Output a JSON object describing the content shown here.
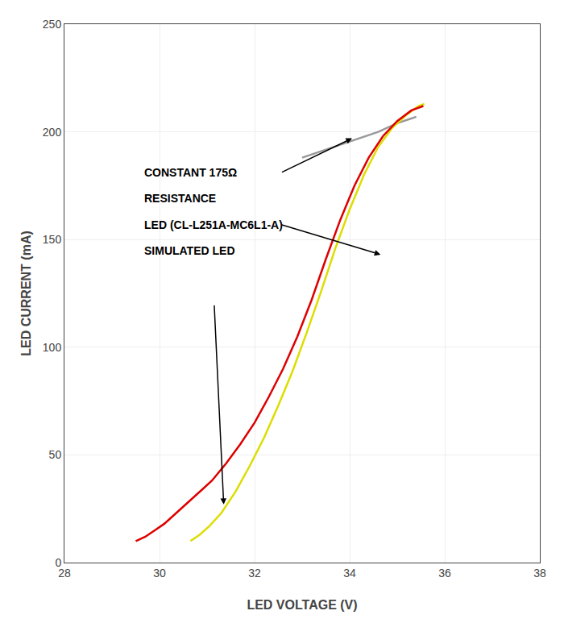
{
  "chart_data": {
    "type": "line",
    "xlabel": "LED VOLTAGE (V)",
    "ylabel": "LED CURRENT (mA)",
    "xlim": [
      28,
      38
    ],
    "ylim": [
      0,
      250
    ],
    "xticks": [
      28,
      30,
      32,
      34,
      36,
      38
    ],
    "yticks": [
      0,
      50,
      100,
      150,
      200,
      250
    ],
    "grid": true,
    "series": [
      {
        "color": "#dd0000",
        "x": [
          29.5,
          29.7,
          29.9,
          30.1,
          30.3,
          30.5,
          30.8,
          31.1,
          31.4,
          31.7,
          32.0,
          32.3,
          32.6,
          32.9,
          33.2,
          33.5,
          33.8,
          34.1,
          34.4,
          34.7,
          35.0,
          35.3,
          35.55
        ],
        "values": [
          10,
          12,
          15,
          18,
          22,
          26,
          32,
          38,
          46,
          55,
          65,
          77,
          90,
          105,
          122,
          141,
          159,
          175,
          188,
          198,
          205,
          210,
          212
        ]
      },
      {
        "color": "#dddd00",
        "x": [
          30.65,
          30.85,
          31.05,
          31.3,
          31.6,
          31.9,
          32.2,
          32.5,
          32.8,
          33.1,
          33.4,
          33.7,
          34.0,
          34.3,
          34.6,
          34.9,
          35.2,
          35.45,
          35.57
        ],
        "values": [
          10,
          13,
          17,
          23,
          33,
          45,
          58,
          73,
          89,
          107,
          126,
          146,
          164,
          180,
          193,
          202,
          208,
          212,
          213
        ]
      },
      {
        "color": "#999999",
        "x": [
          33.0,
          33.4,
          33.8,
          34.2,
          34.6,
          35.0,
          35.4
        ],
        "values": [
          188,
          191,
          194,
          197,
          200,
          204,
          207
        ]
      }
    ],
    "annotations": [
      {
        "text": "CONSTANT 175Ω",
        "x": 29.65,
        "y": 181
      },
      {
        "text": "RESISTANCE",
        "x": 29.65,
        "y": 169
      },
      {
        "text": "LED (CL-L251A-MC6L1-A)",
        "x": 29.65,
        "y": 157
      },
      {
        "text": "SIMULATED LED",
        "x": 29.65,
        "y": 145
      }
    ],
    "arrows": [
      {
        "from": [
          32.55,
          181
        ],
        "to": [
          34.05,
          197
        ]
      },
      {
        "from": [
          32.55,
          157
        ],
        "to": [
          34.65,
          143
        ]
      },
      {
        "from": [
          31.15,
          120
        ],
        "to": [
          31.35,
          27
        ]
      }
    ]
  }
}
